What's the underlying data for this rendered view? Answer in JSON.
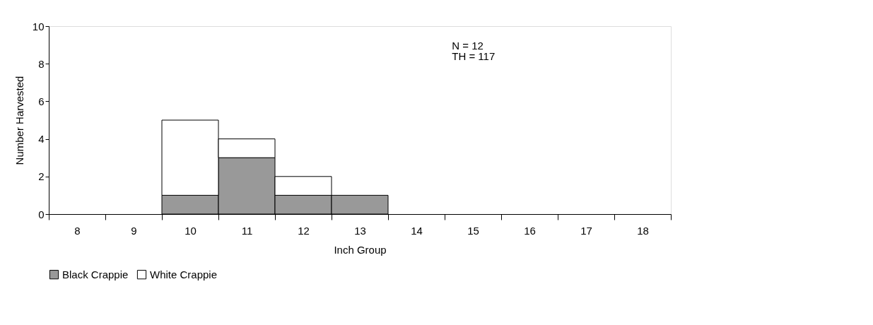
{
  "chart_data": {
    "type": "bar",
    "stacked": true,
    "xlabel": "Inch Group",
    "ylabel": "Number Harvested",
    "categories": [
      "8",
      "9",
      "10",
      "11",
      "12",
      "13",
      "14",
      "15",
      "16",
      "17",
      "18"
    ],
    "series": [
      {
        "name": "Black Crappie",
        "color": "#999999",
        "values": [
          0,
          0,
          1,
          3,
          1,
          1,
          0,
          0,
          0,
          0,
          0
        ]
      },
      {
        "name": "White Crappie",
        "color": "#ffffff",
        "values": [
          0,
          0,
          4,
          1,
          1,
          0,
          0,
          0,
          0,
          0,
          0
        ]
      }
    ],
    "ylim": [
      0,
      10
    ],
    "yticks": [
      0,
      2,
      4,
      6,
      8,
      10
    ],
    "grid": false,
    "legend": "bottom",
    "annotations": [
      "N = 12",
      "TH =  117"
    ]
  }
}
